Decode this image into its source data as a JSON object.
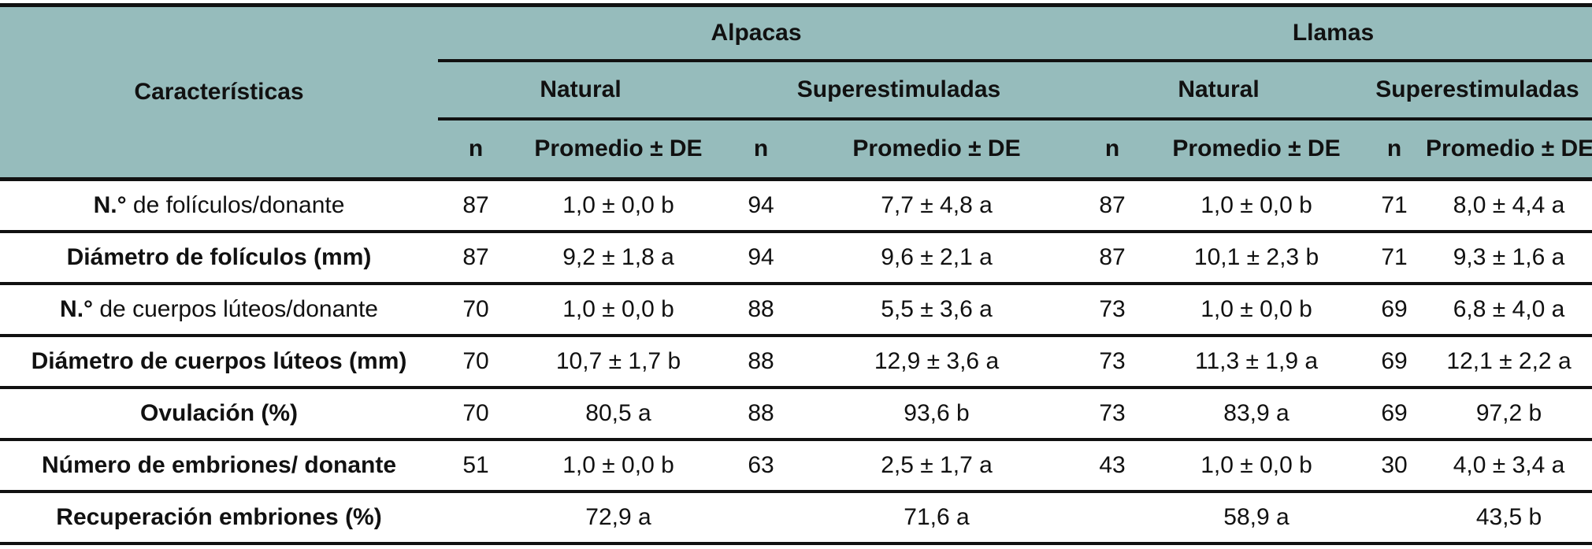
{
  "header": {
    "characteristics": "Características",
    "group_alpacas": "Alpacas",
    "group_llamas": "Llamas",
    "sub_natural": "Natural",
    "sub_superestimuladas": "Superestimuladas",
    "col_n": "n",
    "col_mean": "Promedio ± DE"
  },
  "rows": [
    {
      "label_bold": "N.°",
      "label_rest": " de folículos/donante",
      "a_nat_n": "87",
      "a_nat_m": "1,0 ± 0,0 b",
      "a_sup_n": "94",
      "a_sup_m": "7,7 ± 4,8 a",
      "l_nat_n": "87",
      "l_nat_m": "1,0 ± 0,0 b",
      "l_sup_n": "71",
      "l_sup_m": "8,0 ± 4,4 a"
    },
    {
      "label_bold": "Diámetro de folículos (mm)",
      "label_rest": "",
      "a_nat_n": "87",
      "a_nat_m": "9,2 ± 1,8 a",
      "a_sup_n": "94",
      "a_sup_m": "9,6 ± 2,1 a",
      "l_nat_n": "87",
      "l_nat_m": "10,1 ± 2,3 b",
      "l_sup_n": "71",
      "l_sup_m": "9,3 ± 1,6 a"
    },
    {
      "label_bold": "N.°",
      "label_rest": " de cuerpos lúteos/donante",
      "a_nat_n": "70",
      "a_nat_m": "1,0 ± 0,0 b",
      "a_sup_n": "88",
      "a_sup_m": "5,5 ± 3,6 a",
      "l_nat_n": "73",
      "l_nat_m": "1,0 ± 0,0 b",
      "l_sup_n": "69",
      "l_sup_m": "6,8 ± 4,0 a"
    },
    {
      "label_bold": "Diámetro de cuerpos lúteos (mm)",
      "label_rest": "",
      "a_nat_n": "70",
      "a_nat_m": "10,7 ± 1,7 b",
      "a_sup_n": "88",
      "a_sup_m": "12,9 ± 3,6 a",
      "l_nat_n": "73",
      "l_nat_m": "11,3 ± 1,9 a",
      "l_sup_n": "69",
      "l_sup_m": "12,1 ± 2,2 a"
    },
    {
      "label_bold": "Ovulación (%)",
      "label_rest": "",
      "a_nat_n": "70",
      "a_nat_m": "80,5 a",
      "a_sup_n": "88",
      "a_sup_m": "93,6 b",
      "l_nat_n": "73",
      "l_nat_m": "83,9 a",
      "l_sup_n": "69",
      "l_sup_m": "97,2 b"
    },
    {
      "label_bold": "Número de embriones/ donante",
      "label_rest": "",
      "a_nat_n": "51",
      "a_nat_m": "1,0 ± 0,0 b",
      "a_sup_n": "63",
      "a_sup_m": "2,5 ± 1,7 a",
      "l_nat_n": "43",
      "l_nat_m": "1,0 ± 0,0 b",
      "l_sup_n": "30",
      "l_sup_m": "4,0 ± 3,4 a"
    },
    {
      "label_bold": "Recuperación embriones (%)",
      "label_rest": "",
      "a_nat_n": "",
      "a_nat_m": "72,9 a",
      "a_sup_n": "",
      "a_sup_m": "71,6 a",
      "l_nat_n": "",
      "l_nat_m": "58,9 a",
      "l_sup_n": "",
      "l_sup_m": "43,5 b"
    }
  ]
}
